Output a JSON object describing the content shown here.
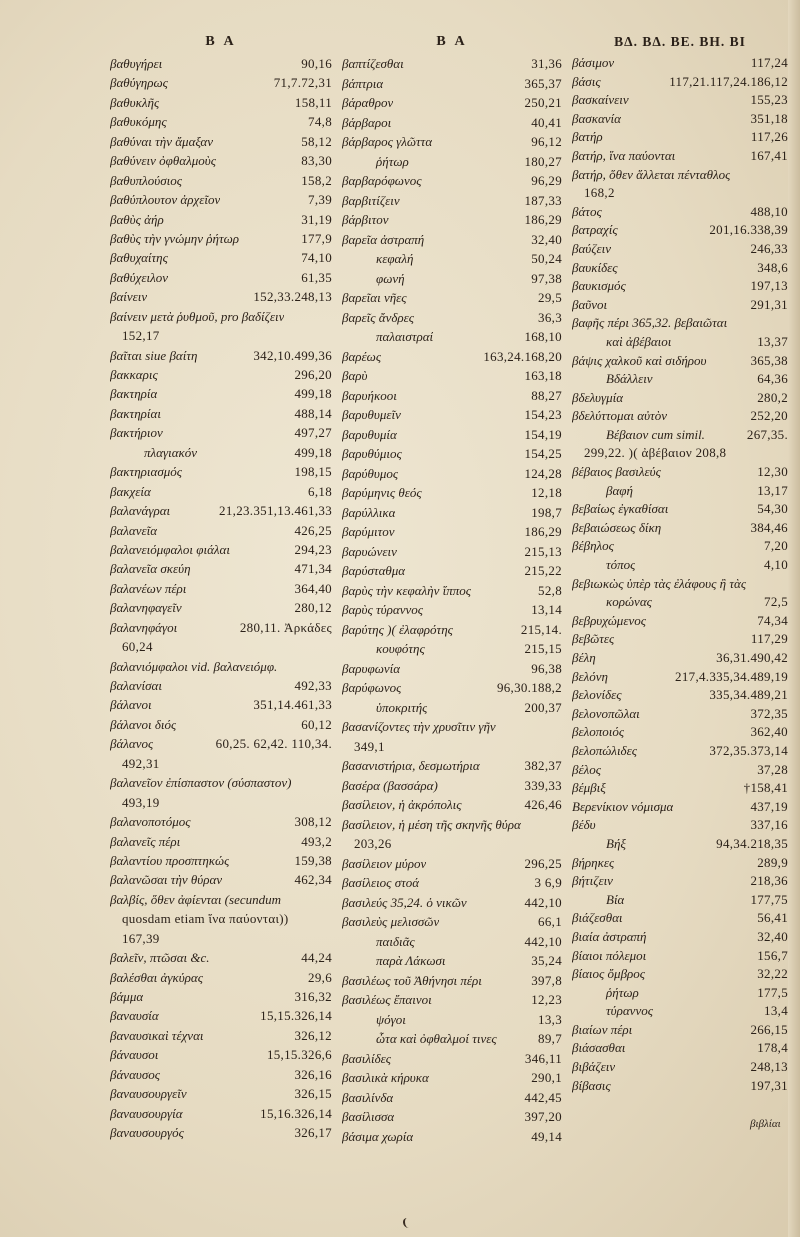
{
  "columns": [
    {
      "header": "Β Α",
      "lines": [
        {
          "t": "βαθυγήρει",
          "r": "90,16"
        },
        {
          "t": "βαθύγηρως",
          "r": "71,7.72,31"
        },
        {
          "t": "βαθυκλῆς",
          "r": "158,11"
        },
        {
          "t": "βαθυκόμης",
          "r": "74,8"
        },
        {
          "t": "βαθύναι τὴν ἄμαξαν",
          "r": "58,12"
        },
        {
          "t": "βαθύνειν ὀφθαλμοὺς",
          "r": "83,30"
        },
        {
          "t": "βαθυπλούσιος",
          "r": "158,2"
        },
        {
          "t": "βαθύπλουτον ἀρχεῖον",
          "r": "7,39"
        },
        {
          "t": "βαθὺς ἀήρ",
          "r": "31,19"
        },
        {
          "t": "βαθὺς τὴν γνώμην ῥήτωρ",
          "r": "177,9"
        },
        {
          "t": "βαθυχαίτης",
          "r": "74,10"
        },
        {
          "t": "βαθύχειλον",
          "r": "61,35"
        },
        {
          "t": "βαίνειν",
          "r": "152,33.248,13"
        },
        {
          "t": "βαίνειν μετὰ ῥυθμοῦ, pro βαδίζειν",
          "r": ""
        },
        {
          "t": "",
          "r": "152,17"
        },
        {
          "t": "βαῖται siue βαίτη",
          "r": "342,10.499,36"
        },
        {
          "t": "βακκαρις",
          "r": "296,20"
        },
        {
          "t": "βακτηρία",
          "r": "499,18"
        },
        {
          "t": "βακτηρίαι",
          "r": "488,14"
        },
        {
          "t": "βακτήριον",
          "r": "497,27"
        },
        {
          "t": "πλαγιακόν",
          "r": "499,18",
          "indent": true
        },
        {
          "t": "βακτηριασμός",
          "r": "198,15"
        },
        {
          "t": "βακχεία",
          "r": "6,18"
        },
        {
          "t": "βαλανάγραι",
          "r": "21,23.351,13.461,33"
        },
        {
          "t": "βαλανεῖα",
          "r": "426,25"
        },
        {
          "t": "βαλανειόμφαλοι φιάλαι",
          "r": "294,23"
        },
        {
          "t": "βαλανεῖα σκεύη",
          "r": "471,34"
        },
        {
          "t": "βαλανέων πέρι",
          "r": "364,40"
        },
        {
          "t": "βαλανηφαγεῖν",
          "r": "280,12"
        },
        {
          "t": "βαλανηφάγοι",
          "r": "280,11. Ἀρκάδες"
        },
        {
          "t": "",
          "r": "60,24"
        },
        {
          "t": "βαλανιόμφαλοι vid. βαλανειόμφ.",
          "r": ""
        },
        {
          "t": "βαλανίσαι",
          "r": "492,33"
        },
        {
          "t": "βάλανοι",
          "r": "351,14.461,33"
        },
        {
          "t": "βάλανοι διός",
          "r": "60,12"
        },
        {
          "t": "βάλανος",
          "r": "60,25. 62,42. 110,34."
        },
        {
          "t": "",
          "r": "492,31"
        },
        {
          "t": "βαλανεῖον ἐπίσπαστον (σύσπαστον)",
          "r": ""
        },
        {
          "t": "",
          "r": "493,19"
        },
        {
          "t": "βαλανοποτόμος",
          "r": "308,12"
        },
        {
          "t": "βαλανεῖς πέρι",
          "r": "493,2"
        },
        {
          "t": "βαλαντίου προσπτηκώς",
          "r": "159,38"
        },
        {
          "t": "βαλανῶσαι τὴν θύραν",
          "r": "462,34"
        },
        {
          "t": "βαλβίς, ὅθεν ἀφίενται (secundum",
          "r": ""
        },
        {
          "t": "",
          "r": "quosdam etiam ἵνα παύονται))"
        },
        {
          "t": "",
          "r": "167,39"
        },
        {
          "t": "βαλεῖν, πτῶσαι &c.",
          "r": "44,24"
        },
        {
          "t": "βαλέσθαι ἀγκύρας",
          "r": "29,6"
        },
        {
          "t": "βάμμα",
          "r": "316,32"
        },
        {
          "t": "βαναυσία",
          "r": "15,15.326,14"
        },
        {
          "t": "βαναυσικαὶ τέχναι",
          "r": "326,12"
        },
        {
          "t": "βάναυσοι",
          "r": "15,15.326,6"
        },
        {
          "t": "βάναυσος",
          "r": "326,16"
        },
        {
          "t": "βαναυσουργεῖν",
          "r": "326,15"
        },
        {
          "t": "βαναυσουργία",
          "r": "15,16.326,14"
        },
        {
          "t": "βαναυσουργός",
          "r": "326,17"
        }
      ]
    },
    {
      "header": "Β Α",
      "lines": [
        {
          "t": "βαπτίζεσθαι",
          "r": "31,36"
        },
        {
          "t": "βάπτρια",
          "r": "365,37"
        },
        {
          "t": "βάραθρον",
          "r": "250,21"
        },
        {
          "t": "βάρβαροι",
          "r": "40,41"
        },
        {
          "t": "βάρβαρος γλῶττα",
          "r": "96,12"
        },
        {
          "t": "ῥήτωρ",
          "r": "180,27",
          "indent": true
        },
        {
          "t": "βαρβαρόφωνος",
          "r": "96,29"
        },
        {
          "t": "βαρβιτίζειν",
          "r": "187,33"
        },
        {
          "t": "βάρβιτον",
          "r": "186,29"
        },
        {
          "t": "βαρεῖα ἀστραπή",
          "r": "32,40"
        },
        {
          "t": "κεφαλή",
          "r": "50,24",
          "indent": true
        },
        {
          "t": "φωνή",
          "r": "97,38",
          "indent": true
        },
        {
          "t": "βαρεῖαι νῆες",
          "r": "29,5"
        },
        {
          "t": "βαρεῖς ἄνδρες",
          "r": "36,3"
        },
        {
          "t": "παλαιστραί",
          "r": "168,10",
          "indent": true
        },
        {
          "t": "βαρέως",
          "r": "163,24.168,20"
        },
        {
          "t": "βαρὺ",
          "r": "163,18"
        },
        {
          "t": "βαρυήκοοι",
          "r": "88,27"
        },
        {
          "t": "βαρυθυμεῖν",
          "r": "154,23"
        },
        {
          "t": "βαρυθυμία",
          "r": "154,19"
        },
        {
          "t": "βαρυθύμιος",
          "r": "154,25"
        },
        {
          "t": "βαρύθυμος",
          "r": "124,28"
        },
        {
          "t": "βαρύμηνις θεός",
          "r": "12,18"
        },
        {
          "t": "βαρύλλικα",
          "r": "198,7"
        },
        {
          "t": "βαρύμιτον",
          "r": "186,29"
        },
        {
          "t": "βαρυώνειν",
          "r": "215,13"
        },
        {
          "t": "βαρύσταθμα",
          "r": "215,22"
        },
        {
          "t": "βαρὺς τὴν κεφαλὴν ἵππος",
          "r": "52,8"
        },
        {
          "t": "βαρὺς τύραννος",
          "r": "13,14"
        },
        {
          "t": "βαρύτης )( ἐλαφρότης",
          "r": "215,14."
        },
        {
          "t": "κουφότης",
          "r": "215,15",
          "indent": true
        },
        {
          "t": "βαρυφωνία",
          "r": "96,38"
        },
        {
          "t": "βαρύφωνος",
          "r": "96,30.188,2"
        },
        {
          "t": "ὑποκριτής",
          "r": "200,37",
          "indent": true
        },
        {
          "t": "βασανίζοντες τὴν χρυσῖτιν γῆν",
          "r": ""
        },
        {
          "t": "",
          "r": "349,1"
        },
        {
          "t": "βασανιστήρια, δεσμωτήρια",
          "r": "382,37"
        },
        {
          "t": "βασέρα (βασσάρα)",
          "r": "339,33"
        },
        {
          "t": "βασίλειον, ἡ ἀκρόπολις",
          "r": "426,46"
        },
        {
          "t": "βασίλειον, ἡ μέση τῆς σκηνῆς θύρα",
          "r": ""
        },
        {
          "t": "",
          "r": "203,26"
        },
        {
          "t": "βασίλειον μύρον",
          "r": "296,25"
        },
        {
          "t": "βασίλειος στοά",
          "r": "3 6,9"
        },
        {
          "t": "βασιλεύς 35,24. ὁ νικῶν",
          "r": "442,10"
        },
        {
          "t": "βασιλεὺς μελισσῶν",
          "r": "66,1"
        },
        {
          "t": "παιδιᾶς",
          "r": "442,10",
          "indent": true
        },
        {
          "t": "παρὰ Λάκωσι",
          "r": "35,24",
          "indent": true
        },
        {
          "t": "βασιλέως τοῦ Ἀθήνησι πέρι",
          "r": "397,8"
        },
        {
          "t": "βασιλέως ἔπαινοι",
          "r": "12,23"
        },
        {
          "t": "ψόγοι",
          "r": "13,3",
          "indent": true
        },
        {
          "t": "ὦτα καὶ ὀφθαλμοί τινες",
          "r": "89,7",
          "indent": true
        },
        {
          "t": "βασιλίδες",
          "r": "346,11"
        },
        {
          "t": "βασιλικὰ κήρυκα",
          "r": "290,1"
        },
        {
          "t": "βασιλίνδα",
          "r": "442,45"
        },
        {
          "t": "βασίλισσα",
          "r": "397,20"
        },
        {
          "t": "βάσιμα χωρία",
          "r": "49,14"
        }
      ]
    },
    {
      "header": "ΒΔ. ΒΔ. ΒΕ. ΒΗ. ΒΙ",
      "lines": [
        {
          "t": "βάσιμον",
          "r": "117,24"
        },
        {
          "t": "βάσις",
          "r": "117,21.117,24.186,12"
        },
        {
          "t": "βασκαίνειν",
          "r": "155,23"
        },
        {
          "t": "βασκανία",
          "r": "351,18"
        },
        {
          "t": "βατήρ",
          "r": "117,26"
        },
        {
          "t": "βατήρ, ἵνα παύονται",
          "r": "167,41"
        },
        {
          "t": "βατήρ, ὅθεν ἅλλεται πένταθλος",
          "r": ""
        },
        {
          "t": "",
          "r": "168,2"
        },
        {
          "t": "βάτος",
          "r": "488,10"
        },
        {
          "t": "βατραχίς",
          "r": "201,16.338,39"
        },
        {
          "t": "βαύζειν",
          "r": "246,33"
        },
        {
          "t": "βαυκίδες",
          "r": "348,6"
        },
        {
          "t": "βαυκισμός",
          "r": "197,13"
        },
        {
          "t": "βαῦνοι",
          "r": "291,31"
        },
        {
          "t": "βαφῆς πέρι 365,32. βεβαιῶται",
          "r": ""
        },
        {
          "t": "καὶ ἀβέβαιοι",
          "r": "13,37",
          "indent": true
        },
        {
          "t": "βάψις χαλκοῦ καὶ σιδήρου",
          "r": "365,38"
        },
        {
          "t": "Βδάλλειν",
          "r": "64,36",
          "indent": true
        },
        {
          "t": "βδελυγμία",
          "r": "280,2"
        },
        {
          "t": "βδελύττομαι αὐτὸν",
          "r": "252,20"
        },
        {
          "t": "Βέβαιον cum simil.",
          "r": "267,35.",
          "indent": true
        },
        {
          "t": "",
          "r": "299,22. )( ἀβέβαιον 208,8"
        },
        {
          "t": "βέβαιος βασιλεύς",
          "r": "12,30"
        },
        {
          "t": "βαφή",
          "r": "13,17",
          "indent": true
        },
        {
          "t": "βεβαίως ἐγκαθίσαι",
          "r": "54,30"
        },
        {
          "t": "βεβαιώσεως δίκη",
          "r": "384,46"
        },
        {
          "t": "βέβηλος",
          "r": "7,20"
        },
        {
          "t": "τόπος",
          "r": "4,10",
          "indent": true
        },
        {
          "t": "βεβιωκὼς ὑπὲρ τὰς ἐλάφους ἢ τὰς",
          "r": ""
        },
        {
          "t": "κορώνας",
          "r": "72,5",
          "indent": true
        },
        {
          "t": "βεβρυχώμενος",
          "r": "74,34"
        },
        {
          "t": "βεβῶτες",
          "r": "117,29"
        },
        {
          "t": "βέλη",
          "r": "36,31.490,42"
        },
        {
          "t": "βελόνη",
          "r": "217,4.335,34.489,19"
        },
        {
          "t": "βελονίδες",
          "r": "335,34.489,21"
        },
        {
          "t": "βελονοπῶλαι",
          "r": "372,35"
        },
        {
          "t": "βελοποιός",
          "r": "362,40"
        },
        {
          "t": "βελοπώλιδες",
          "r": "372,35.373,14"
        },
        {
          "t": "βέλος",
          "r": "37,28"
        },
        {
          "t": "βέμβιξ",
          "r": "†158,41"
        },
        {
          "t": "Βερενίκιον νόμισμα",
          "r": "437,19"
        },
        {
          "t": "βέδυ",
          "r": "337,16"
        },
        {
          "t": "Βήξ",
          "r": "94,34.218,35",
          "indent": true
        },
        {
          "t": "βήρηκες",
          "r": "289,9"
        },
        {
          "t": "βήτιζειν",
          "r": "218,36"
        },
        {
          "t": "Βία",
          "r": "177,75",
          "indent": true
        },
        {
          "t": "βιάζεσθαι",
          "r": "56,41"
        },
        {
          "t": "βιαία ἀστραπή",
          "r": "32,40"
        },
        {
          "t": "βίαιοι πόλεμοι",
          "r": "156,7"
        },
        {
          "t": "βίαιος ὄμβρος",
          "r": "32,22"
        },
        {
          "t": "ῥήτωρ",
          "r": "177,5",
          "indent": true
        },
        {
          "t": "τύραννος",
          "r": "13,4",
          "indent": true
        },
        {
          "t": "βιαίων πέρι",
          "r": "266,15"
        },
        {
          "t": "βιάσασθαι",
          "r": "178,4"
        },
        {
          "t": "βιβάζειν",
          "r": "248,13"
        },
        {
          "t": "βίβασις",
          "r": "197,31"
        }
      ],
      "catchword": "βιβλίαι"
    }
  ]
}
